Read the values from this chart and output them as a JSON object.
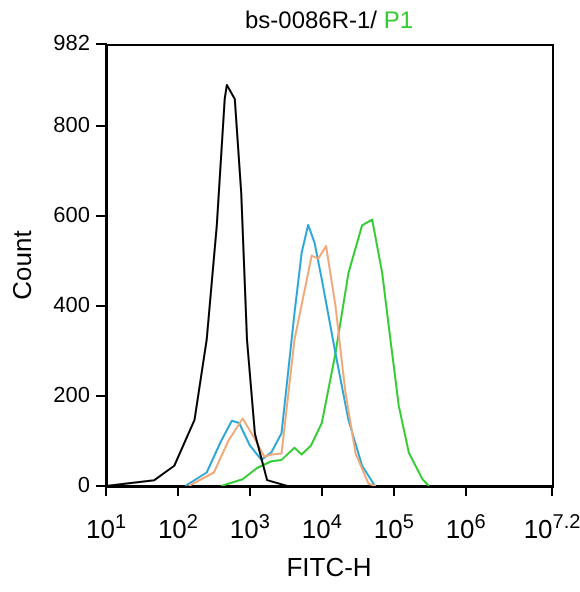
{
  "chart_data": {
    "type": "line",
    "title": "bs-0086R-1/ P1",
    "xlabel": "FITC-H",
    "ylabel": "Count",
    "log": "x",
    "grid": false,
    "legend": false,
    "marker": "none",
    "line_style": "solid",
    "xlim": [
      10,
      15848932
    ],
    "xticks": [
      {
        "value": 10,
        "label": "10$^{1}$"
      },
      {
        "value": 100,
        "label": "10$^{2}$"
      },
      {
        "value": 1000,
        "label": "10$^{3}$"
      },
      {
        "value": 10000,
        "label": "10$^{4}$"
      },
      {
        "value": 100000,
        "label": "10$^{5}$"
      },
      {
        "value": 1000000,
        "label": "10$^{6}$"
      },
      {
        "value": 15848932,
        "label": "10$^{7.2}$"
      }
    ],
    "ylim": [
      0,
      982
    ],
    "yticks": [
      0,
      200,
      400,
      600,
      800,
      982
    ],
    "series": [
      {
        "color": "#000000",
        "x": [
          10,
          47,
          89,
          170,
          251,
          347,
          447,
          479,
          617,
          759,
          912,
          1175,
          1738,
          3311
        ],
        "values": [
          0,
          13,
          45,
          147,
          325,
          579,
          860,
          891,
          860,
          650,
          325,
          116,
          13,
          0
        ]
      },
      {
        "color": "#f0a878",
        "x": [
          141,
          316,
          501,
          794,
          1122,
          1585,
          1995,
          2754,
          4169,
          7244,
          8913,
          11482,
          15488,
          21380,
          29512,
          44668,
          56234
        ],
        "values": [
          0,
          30,
          100,
          150,
          110,
          65,
          70,
          72,
          325,
          512,
          505,
          533,
          400,
          206,
          72,
          5,
          0
        ]
      },
      {
        "color": "#2aa6d8",
        "x": [
          126,
          251,
          398,
          562,
          708,
          1000,
          1445,
          1995,
          2754,
          4169,
          5248,
          6457,
          7943,
          10000,
          15488,
          23442,
          36308,
          54954
        ],
        "values": [
          0,
          30,
          100,
          145,
          140,
          90,
          58,
          75,
          117,
          384,
          518,
          580,
          540,
          459,
          295,
          147,
          45,
          0
        ]
      },
      {
        "color": "#33cc33",
        "x": [
          398,
          794,
          1259,
          1995,
          2754,
          4169,
          5248,
          7079,
          10000,
          15488,
          23442,
          36308,
          50119,
          69183,
          85114,
          117490,
          162181,
          251189,
          309030
        ],
        "values": [
          0,
          15,
          40,
          55,
          58,
          85,
          70,
          90,
          140,
          295,
          473,
          579,
          592,
          473,
          356,
          178,
          74,
          15,
          0
        ]
      }
    ]
  }
}
